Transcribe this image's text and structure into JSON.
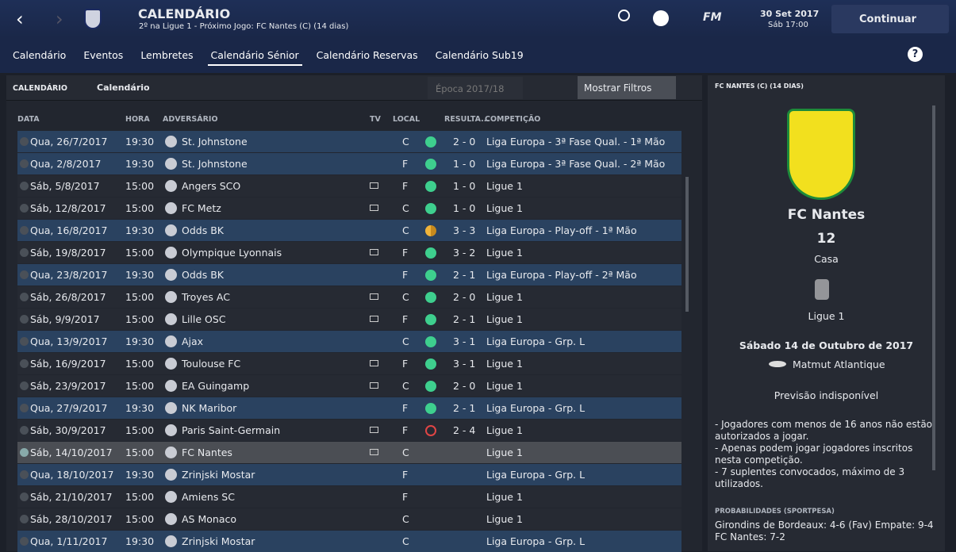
{
  "header": {
    "title": "CALENDÁRIO",
    "subtitle": "2º na Ligue 1 - Próximo Jogo: FC Nantes (C) (14 dias)",
    "logo": "FM",
    "date": "30 Set 2017",
    "time": "Sáb 17:00",
    "continue": "Continuar"
  },
  "tabs": {
    "items": [
      "Calendário",
      "Eventos",
      "Lembretes",
      "Calendário Sénior",
      "Calendário Reservas",
      "Calendário Sub19"
    ],
    "active": 3
  },
  "panel": {
    "label": "CALENDÁRIO",
    "view": "Calendário",
    "season": "Época 2017/18",
    "filters": "Mostrar Filtros"
  },
  "table": {
    "columns": [
      "DATA",
      "HORA",
      "ADVERSÁRIO",
      "TV",
      "LOCAL",
      "RESULTA...",
      "COMPETIÇÃO"
    ],
    "rows": [
      {
        "date": "Qua, 26/7/2017",
        "time": "19:30",
        "opponent": "St. Johnstone",
        "tv": false,
        "venue": "C",
        "outcome": "win",
        "result": "2 - 0",
        "competition": "Liga Europa - 3ª Fase Qual. - 1ª Mão",
        "style": "europe"
      },
      {
        "date": "Qua, 2/8/2017",
        "time": "19:30",
        "opponent": "St. Johnstone",
        "tv": false,
        "venue": "F",
        "outcome": "win",
        "result": "1 - 0",
        "competition": "Liga Europa - 3ª Fase Qual. - 2ª Mão",
        "style": "europe"
      },
      {
        "date": "Sáb, 5/8/2017",
        "time": "15:00",
        "opponent": "Angers SCO",
        "tv": true,
        "venue": "F",
        "outcome": "win",
        "result": "1 - 0",
        "competition": "Ligue 1",
        "style": "league"
      },
      {
        "date": "Sáb, 12/8/2017",
        "time": "15:00",
        "opponent": "FC Metz",
        "tv": true,
        "venue": "C",
        "outcome": "win",
        "result": "1 - 0",
        "competition": "Ligue 1",
        "style": "league"
      },
      {
        "date": "Qua, 16/8/2017",
        "time": "19:30",
        "opponent": "Odds BK",
        "tv": false,
        "venue": "C",
        "outcome": "draw",
        "result": "3 - 3",
        "competition": "Liga Europa - Play-off - 1ª Mão",
        "style": "europe"
      },
      {
        "date": "Sáb, 19/8/2017",
        "time": "15:00",
        "opponent": "Olympique Lyonnais",
        "tv": true,
        "venue": "F",
        "outcome": "win",
        "result": "3 - 2",
        "competition": "Ligue 1",
        "style": "league"
      },
      {
        "date": "Qua, 23/8/2017",
        "time": "19:30",
        "opponent": "Odds BK",
        "tv": false,
        "venue": "F",
        "outcome": "win",
        "result": "2 - 1",
        "competition": "Liga Europa - Play-off - 2ª Mão",
        "style": "europe"
      },
      {
        "date": "Sáb, 26/8/2017",
        "time": "15:00",
        "opponent": "Troyes AC",
        "tv": true,
        "venue": "C",
        "outcome": "win",
        "result": "2 - 0",
        "competition": "Ligue 1",
        "style": "league"
      },
      {
        "date": "Sáb, 9/9/2017",
        "time": "15:00",
        "opponent": "Lille OSC",
        "tv": true,
        "venue": "F",
        "outcome": "win",
        "result": "2 - 1",
        "competition": "Ligue 1",
        "style": "league"
      },
      {
        "date": "Qua, 13/9/2017",
        "time": "19:30",
        "opponent": "Ajax",
        "tv": false,
        "venue": "C",
        "outcome": "win",
        "result": "3 - 1",
        "competition": "Liga Europa - Grp. L",
        "style": "europe"
      },
      {
        "date": "Sáb, 16/9/2017",
        "time": "15:00",
        "opponent": "Toulouse FC",
        "tv": true,
        "venue": "F",
        "outcome": "win",
        "result": "3 - 1",
        "competition": "Ligue 1",
        "style": "league"
      },
      {
        "date": "Sáb, 23/9/2017",
        "time": "15:00",
        "opponent": "EA Guingamp",
        "tv": true,
        "venue": "C",
        "outcome": "win",
        "result": "2 - 0",
        "competition": "Ligue 1",
        "style": "league"
      },
      {
        "date": "Qua, 27/9/2017",
        "time": "19:30",
        "opponent": "NK Maribor",
        "tv": false,
        "venue": "F",
        "outcome": "win",
        "result": "2 - 1",
        "competition": "Liga Europa - Grp. L",
        "style": "europe"
      },
      {
        "date": "Sáb, 30/9/2017",
        "time": "15:00",
        "opponent": "Paris Saint-Germain",
        "tv": true,
        "venue": "F",
        "outcome": "loss",
        "result": "2 - 4",
        "competition": "Ligue 1",
        "style": "league"
      },
      {
        "date": "Sáb, 14/10/2017",
        "time": "15:00",
        "opponent": "FC Nantes",
        "tv": true,
        "venue": "C",
        "outcome": "none",
        "result": null,
        "competition": "Ligue 1",
        "style": "selected"
      },
      {
        "date": "Qua, 18/10/2017",
        "time": "19:30",
        "opponent": "Zrinjski Mostar",
        "tv": false,
        "venue": "F",
        "outcome": "none",
        "result": null,
        "competition": "Liga Europa - Grp. L",
        "style": "europe"
      },
      {
        "date": "Sáb, 21/10/2017",
        "time": "15:00",
        "opponent": "Amiens SC",
        "tv": false,
        "venue": "F",
        "outcome": "none",
        "result": null,
        "competition": "Ligue 1",
        "style": "league"
      },
      {
        "date": "Sáb, 28/10/2017",
        "time": "15:00",
        "opponent": "AS Monaco",
        "tv": false,
        "venue": "C",
        "outcome": "none",
        "result": null,
        "competition": "Ligue 1",
        "style": "league"
      },
      {
        "date": "Qua, 1/11/2017",
        "time": "19:30",
        "opponent": "Zrinjski Mostar",
        "tv": false,
        "venue": "C",
        "outcome": "none",
        "result": null,
        "competition": "Liga Europa - Grp. L",
        "style": "europe"
      }
    ]
  },
  "details": {
    "title": "FC NANTES (C) (14 DIAS)",
    "team": "FC Nantes",
    "position": "12",
    "venue": "Casa",
    "league": "Ligue 1",
    "date": "Sábado 14 de Outubro de 2017",
    "stadium": "Matmut Atlantique",
    "forecast": "Previsão indisponível",
    "notes": [
      "- Jogadores com menos de 16 anos não estão autorizados a jogar.",
      "- Apenas podem jogar jogadores inscritos nesta competição.",
      "- 7 suplentes convocados, máximo de 3 utilizados."
    ],
    "odds_title": "PROBABILIDADES (SPORTPESA)",
    "odds": [
      "Girondins de Bordeaux: 4-6 (Fav) Empate: 9-4",
      "FC Nantes: 7-2"
    ]
  }
}
